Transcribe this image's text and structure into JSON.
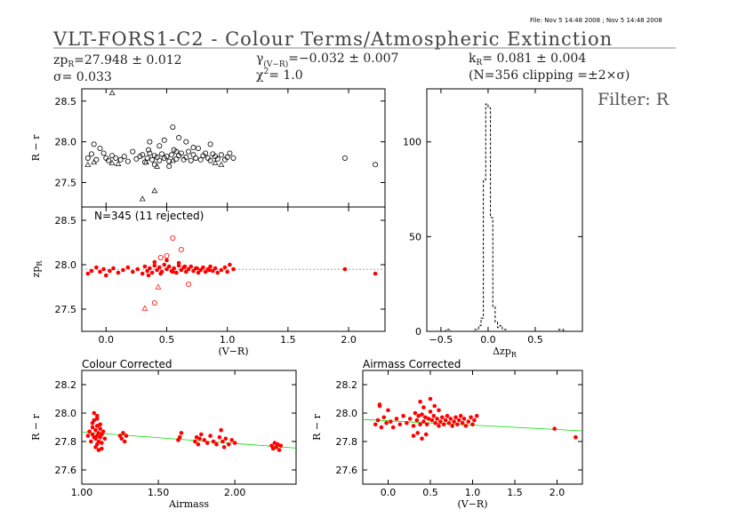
{
  "header": {
    "file_stamp": "File: Nov  5 14:48 2008 ; Nov  5 14:48 2008",
    "title": "VLT-FORS1-C2 - Colour Terms/Atmospheric Extinction",
    "zp_label": "zp",
    "zp_sub": "R",
    "zp_value": "=27.948 ± 0.012",
    "sigma_label": "σ",
    "sigma_value": "=  0.033",
    "gamma_label": "γ",
    "gamma_sub": "(V−R)",
    "gamma_value": "=−0.032 ± 0.007",
    "chi_label": "χ",
    "chi_sup": "2",
    "chi_value": "=   1.0",
    "k_label": "k",
    "k_sub": "R",
    "k_value": "= 0.081 ± 0.004",
    "clip_text": "(N=356 clipping =±2×σ)",
    "filter": "Filter: R"
  },
  "chart_data": [
    {
      "id": "colour-top",
      "type": "scatter",
      "ylabel": "R − r",
      "xlabel": "",
      "xlim": [
        -0.2,
        2.3
      ],
      "ylim": [
        27.2,
        28.65
      ],
      "yticks": [
        27.5,
        28.0,
        28.5
      ],
      "ytick_labels": [
        "27.5",
        "28.0",
        "28.5"
      ],
      "xticks": [
        0.0,
        0.5,
        1.0,
        1.5,
        2.0
      ],
      "xtick_labels": [
        "",
        "",
        "",
        "",
        ""
      ],
      "color": "#000000",
      "series": [
        {
          "marker": "circle",
          "x": [
            -0.15,
            -0.12,
            -0.1,
            -0.08,
            -0.05,
            -0.02,
            0.0,
            0.02,
            0.05,
            0.08,
            0.12,
            0.15,
            0.18,
            0.22,
            0.25,
            0.28,
            0.3,
            0.32,
            0.34,
            0.36,
            0.38,
            0.4,
            0.42,
            0.44,
            0.46,
            0.48,
            0.5,
            0.52,
            0.54,
            0.56,
            0.58,
            0.6,
            0.62,
            0.64,
            0.66,
            0.68,
            0.7,
            0.72,
            0.74,
            0.76,
            0.78,
            0.8,
            0.82,
            0.84,
            0.86,
            0.88,
            0.9,
            0.92,
            0.95,
            0.98,
            1.0,
            1.02,
            1.05,
            0.55,
            0.48,
            0.6,
            0.4,
            0.36,
            0.44,
            0.52,
            0.58,
            0.35,
            0.66,
            0.72,
            0.86,
            1.97,
            2.22
          ],
          "y": [
            27.8,
            27.85,
            27.97,
            27.78,
            27.92,
            27.86,
            27.8,
            27.77,
            27.83,
            27.8,
            27.78,
            27.82,
            27.76,
            27.88,
            27.79,
            27.82,
            27.84,
            27.75,
            27.8,
            27.86,
            27.78,
            27.83,
            27.81,
            27.77,
            27.85,
            27.8,
            27.82,
            27.76,
            27.84,
            27.9,
            27.79,
            27.83,
            27.86,
            27.78,
            27.81,
            27.88,
            27.77,
            27.84,
            27.8,
            27.92,
            27.78,
            27.83,
            27.86,
            27.8,
            27.77,
            27.85,
            27.82,
            27.79,
            27.84,
            27.78,
            27.81,
            27.86,
            27.8,
            28.18,
            28.02,
            28.05,
            27.72,
            28.0,
            27.95,
            27.7,
            27.88,
            27.9,
            28.0,
            27.93,
            27.97,
            27.8,
            27.72
          ]
        },
        {
          "marker": "triangle",
          "x": [
            -0.15,
            0.05,
            0.3,
            0.33,
            0.4,
            0.42,
            0.9,
            0.55,
            0.95,
            -0.1,
            0.1
          ],
          "y": [
            27.72,
            27.74,
            27.3,
            27.75,
            27.4,
            27.7,
            27.74,
            27.77,
            27.72,
            27.75,
            27.73
          ],
          "extra_x": [
            0.05
          ],
          "extra_y": [
            28.6
          ]
        }
      ]
    },
    {
      "id": "zp-middle",
      "type": "scatter",
      "annotation": "N=345 (11 rejected)",
      "ylabel": "zp",
      "ylabel_sub": "R",
      "xlabel": "(V−R)",
      "xlim": [
        -0.2,
        2.3
      ],
      "ylim": [
        27.25,
        28.65
      ],
      "yticks": [
        27.5,
        28.0,
        28.5
      ],
      "ytick_labels": [
        "27.5",
        "28.0",
        "28.5"
      ],
      "xticks": [
        0.0,
        0.5,
        1.0,
        1.5,
        2.0
      ],
      "xtick_labels": [
        "0.0",
        "0.5",
        "1.0",
        "1.5",
        "2.0"
      ],
      "fit_line": {
        "value": 27.948,
        "color": "#999999"
      },
      "series": [
        {
          "marker": "dot",
          "color": "#ff0000",
          "x": [
            -0.15,
            -0.12,
            -0.08,
            -0.05,
            -0.02,
            0.0,
            0.03,
            0.06,
            0.1,
            0.14,
            0.18,
            0.22,
            0.26,
            0.3,
            0.32,
            0.34,
            0.36,
            0.38,
            0.4,
            0.42,
            0.44,
            0.46,
            0.48,
            0.5,
            0.52,
            0.54,
            0.56,
            0.58,
            0.6,
            0.62,
            0.64,
            0.66,
            0.68,
            0.7,
            0.72,
            0.74,
            0.76,
            0.78,
            0.8,
            0.82,
            0.84,
            0.86,
            0.88,
            0.9,
            0.92,
            0.95,
            0.98,
            1.0,
            1.02,
            1.05,
            0.35,
            0.45,
            0.55,
            0.65,
            0.75,
            0.85,
            0.4,
            0.5,
            0.6,
            1.97,
            2.22
          ],
          "y": [
            27.9,
            27.93,
            27.97,
            27.92,
            27.95,
            27.88,
            27.93,
            27.96,
            27.91,
            27.94,
            27.97,
            27.92,
            27.95,
            27.9,
            27.98,
            27.93,
            27.96,
            27.91,
            27.99,
            27.94,
            27.97,
            27.92,
            28.0,
            27.95,
            27.98,
            27.93,
            27.96,
            27.91,
            27.99,
            27.94,
            27.97,
            27.92,
            27.95,
            27.98,
            27.93,
            27.96,
            27.91,
            27.94,
            27.97,
            27.92,
            27.95,
            27.98,
            27.93,
            27.96,
            27.91,
            27.94,
            27.97,
            27.92,
            28.0,
            27.95,
            27.88,
            27.9,
            27.92,
            27.98,
            27.96,
            27.94,
            28.03,
            28.05,
            28.02,
            27.95,
            27.9
          ]
        },
        {
          "marker": "circle",
          "color": "#ff0000",
          "x": [
            0.55,
            0.62,
            0.45,
            0.68,
            0.4,
            0.5
          ],
          "y": [
            28.3,
            28.17,
            28.08,
            27.78,
            27.57,
            28.1
          ]
        },
        {
          "marker": "triangle",
          "color": "#ff0000",
          "x": [
            0.32,
            0.43
          ],
          "y": [
            27.51,
            27.75
          ]
        }
      ]
    },
    {
      "id": "histogram",
      "type": "bar",
      "xlabel": "Δzp",
      "xlabel_sub": "R",
      "xlim": [
        -0.65,
        1.0
      ],
      "ylim": [
        0,
        128
      ],
      "yticks": [
        0,
        50,
        100
      ],
      "ytick_labels": [
        "0",
        "50",
        "100"
      ],
      "xticks": [
        -0.5,
        0.0,
        0.5
      ],
      "xtick_labels": [
        "−0.5",
        "0.0",
        "0.5"
      ],
      "bin_edges": [
        -0.65,
        -0.45,
        -0.4,
        -0.15,
        -0.1,
        -0.075,
        -0.05,
        -0.025,
        0.0,
        0.025,
        0.05,
        0.075,
        0.1,
        0.125,
        0.15,
        0.2,
        0.75,
        0.8,
        1.0
      ],
      "counts": [
        0,
        1,
        0,
        1,
        3,
        7,
        80,
        120,
        118,
        60,
        13,
        5,
        2,
        3,
        1,
        0,
        1,
        0
      ]
    },
    {
      "id": "colour-corrected",
      "type": "scatter",
      "title": "Colour Corrected",
      "xlabel": "Airmass",
      "ylabel": "R − r",
      "xlim": [
        1.0,
        2.4
      ],
      "ylim": [
        27.5,
        28.3
      ],
      "yticks": [
        27.6,
        27.8,
        28.0,
        28.2
      ],
      "ytick_labels": [
        "27.6",
        "27.8",
        "28.0",
        "28.2"
      ],
      "xticks": [
        1.0,
        1.5,
        2.0
      ],
      "xtick_labels": [
        "1.00",
        "1.50",
        "2.00"
      ],
      "fit_line": {
        "x": [
          1.0,
          2.4
        ],
        "y": [
          27.867,
          27.754
        ],
        "color": "#00dd00"
      },
      "series": [
        {
          "marker": "dot",
          "color": "#ff0000",
          "x": [
            1.04,
            1.05,
            1.06,
            1.07,
            1.07,
            1.08,
            1.08,
            1.09,
            1.09,
            1.1,
            1.1,
            1.1,
            1.11,
            1.11,
            1.12,
            1.12,
            1.13,
            1.13,
            1.14,
            1.15,
            1.08,
            1.09,
            1.1,
            1.11,
            1.12,
            1.07,
            1.1,
            1.13,
            1.25,
            1.26,
            1.27,
            1.28,
            1.29,
            1.63,
            1.64,
            1.65,
            1.74,
            1.75,
            1.76,
            1.77,
            1.78,
            1.8,
            1.82,
            1.84,
            1.86,
            1.88,
            1.9,
            1.92,
            1.94,
            1.96,
            1.98,
            2.0,
            1.91,
            1.93,
            2.24,
            2.25,
            2.26,
            2.27,
            2.28,
            2.29,
            2.3
          ],
          "y": [
            27.84,
            27.87,
            27.8,
            27.9,
            27.85,
            27.83,
            27.95,
            27.82,
            27.88,
            27.84,
            27.91,
            27.78,
            27.86,
            27.8,
            27.89,
            27.83,
            27.85,
            27.79,
            27.87,
            27.82,
            28.0,
            27.76,
            27.98,
            27.74,
            27.92,
            27.93,
            27.96,
            27.75,
            27.84,
            27.82,
            27.86,
            27.8,
            27.84,
            27.81,
            27.83,
            27.86,
            27.8,
            27.83,
            27.78,
            27.82,
            27.85,
            27.81,
            27.79,
            27.84,
            27.8,
            27.78,
            27.83,
            27.8,
            27.82,
            27.78,
            27.81,
            27.79,
            27.88,
            27.76,
            27.77,
            27.75,
            27.79,
            27.76,
            27.78,
            27.74,
            27.77
          ]
        }
      ]
    },
    {
      "id": "airmass-corrected",
      "type": "scatter",
      "title": "Airmass Corrected",
      "xlabel": "(V−R)",
      "ylabel": "R − r",
      "xlim": [
        -0.3,
        2.3
      ],
      "ylim": [
        27.5,
        28.3
      ],
      "yticks": [
        27.6,
        27.8,
        28.0,
        28.2
      ],
      "ytick_labels": [
        "27.6",
        "27.8",
        "28.0",
        "28.2"
      ],
      "xticks": [
        0.0,
        0.5,
        1.0,
        1.5,
        2.0
      ],
      "xtick_labels": [
        "0.0",
        "0.5",
        "1.0",
        "1.5",
        "2.0"
      ],
      "fit_line": {
        "x": [
          -0.3,
          2.3
        ],
        "y": [
          27.955,
          27.875
        ],
        "color": "#00dd00"
      },
      "series": [
        {
          "marker": "dot",
          "color": "#ff0000",
          "x": [
            -0.15,
            -0.12,
            -0.1,
            -0.08,
            -0.05,
            -0.02,
            0.0,
            0.03,
            0.06,
            0.1,
            0.14,
            0.18,
            0.22,
            0.26,
            0.3,
            0.32,
            0.34,
            0.36,
            0.38,
            0.4,
            0.42,
            0.44,
            0.46,
            0.48,
            0.5,
            0.52,
            0.54,
            0.56,
            0.58,
            0.6,
            0.62,
            0.64,
            0.66,
            0.68,
            0.7,
            0.72,
            0.74,
            0.76,
            0.78,
            0.8,
            0.82,
            0.84,
            0.86,
            0.88,
            0.9,
            0.92,
            0.95,
            0.98,
            1.0,
            1.02,
            1.05,
            0.3,
            0.35,
            0.4,
            0.45,
            0.38,
            0.42,
            0.5,
            0.55,
            0.6,
            -0.1,
            1.97,
            2.22
          ],
          "y": [
            27.92,
            27.95,
            28.05,
            27.9,
            27.97,
            27.93,
            28.02,
            27.94,
            27.9,
            27.96,
            27.92,
            27.98,
            27.93,
            27.96,
            27.91,
            28.0,
            27.95,
            27.98,
            27.92,
            27.99,
            27.94,
            27.97,
            27.92,
            27.96,
            28.01,
            27.95,
            27.98,
            27.93,
            27.96,
            27.91,
            27.94,
            27.97,
            27.92,
            27.95,
            27.98,
            27.93,
            27.96,
            27.91,
            27.94,
            27.97,
            27.92,
            27.95,
            27.98,
            27.93,
            27.96,
            27.91,
            27.94,
            27.97,
            27.92,
            27.95,
            27.98,
            27.84,
            27.86,
            27.82,
            27.85,
            28.08,
            28.04,
            28.1,
            28.05,
            28.02,
            28.06,
            27.89,
            27.83
          ]
        }
      ]
    }
  ]
}
